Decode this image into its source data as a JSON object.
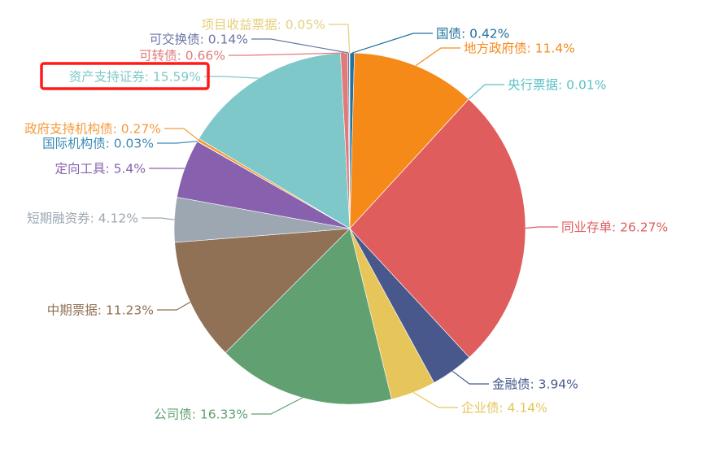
{
  "chart_data": {
    "type": "pie",
    "label_format": "{name}: {value}%",
    "highlighted_label": "资产支持证券",
    "highlight_color": "#ff1a1a",
    "slices": [
      {
        "name": "国债",
        "value": 0.42,
        "color": "#21729f"
      },
      {
        "name": "地方政府债",
        "value": 11.4,
        "color": "#f68a19"
      },
      {
        "name": "央行票据",
        "value": 0.01,
        "color": "#5bc1c4"
      },
      {
        "name": "同业存单",
        "value": 26.27,
        "color": "#e05d5d"
      },
      {
        "name": "金融债",
        "value": 3.94,
        "color": "#48588d"
      },
      {
        "name": "企业债",
        "value": 4.14,
        "color": "#e6c65a"
      },
      {
        "name": "公司债",
        "value": 16.33,
        "color": "#60a071"
      },
      {
        "name": "中期票据",
        "value": 11.23,
        "color": "#917155"
      },
      {
        "name": "短期融资券",
        "value": 4.12,
        "color": "#9ca7b1"
      },
      {
        "name": "定向工具",
        "value": 5.4,
        "color": "#8761ad"
      },
      {
        "name": "国际机构债",
        "value": 0.03,
        "color": "#3c8ab4"
      },
      {
        "name": "政府支持机构债",
        "value": 0.27,
        "color": "#f59a3a"
      },
      {
        "name": "资产支持证券",
        "value": 15.59,
        "color": "#7ec8c9"
      },
      {
        "name": "可转债",
        "value": 0.66,
        "color": "#e07b7b"
      },
      {
        "name": "可交换债",
        "value": 0.14,
        "color": "#6b76a6"
      },
      {
        "name": "项目收益票据",
        "value": 0.05,
        "color": "#e6cf7a"
      }
    ]
  }
}
